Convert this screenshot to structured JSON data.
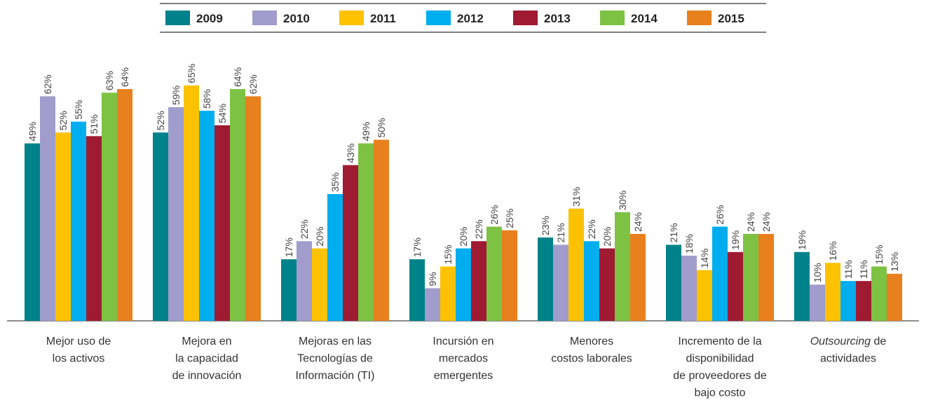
{
  "chart_data": {
    "type": "bar",
    "categories": [
      [
        "Mejor uso de",
        "los activos"
      ],
      [
        "Mejora en",
        "la capacidad",
        "de innovación"
      ],
      [
        "Mejoras en las",
        "Tecnologías de",
        "Información (TI)"
      ],
      [
        "Incursión en",
        "mercados",
        "emergentes"
      ],
      [
        "Menores",
        "costos laborales"
      ],
      [
        "Incremento de la",
        "disponibilidad",
        "de proveedores de",
        "bajo costo"
      ],
      [
        [
          {
            "text": "Outsourcing",
            "italic": true
          },
          {
            "text": " de"
          }
        ],
        "actividades"
      ]
    ],
    "series": [
      {
        "name": "2009",
        "color": "#00828a",
        "values": [
          49,
          52,
          17,
          17,
          23,
          21,
          19
        ],
        "value_labels": [
          "49%",
          "52%",
          "17%",
          "17%",
          "23%",
          "21%",
          "19%"
        ]
      },
      {
        "name": "2010",
        "color": "#a09ccc",
        "values": [
          62,
          59,
          22,
          9,
          21,
          18,
          10
        ],
        "value_labels": [
          "62%",
          "59%",
          "22%",
          "9%",
          "21%",
          "18%",
          "10%"
        ]
      },
      {
        "name": "2011",
        "color": "#fcc200",
        "values": [
          52,
          65,
          20,
          15,
          31,
          14,
          16
        ],
        "value_labels": [
          "52%",
          "65%",
          "20%",
          "15%",
          "31%",
          "14%",
          "16%"
        ]
      },
      {
        "name": "2012",
        "color": "#00adef",
        "values": [
          55,
          58,
          35,
          20,
          22,
          26,
          11
        ],
        "value_labels": [
          "55%",
          "58%",
          "35%",
          "20%",
          "22%",
          "26%",
          "11%"
        ]
      },
      {
        "name": "2013",
        "color": "#9e1b32",
        "values": [
          51,
          54,
          43,
          22,
          20,
          19,
          11
        ],
        "value_labels": [
          "51%",
          "54%",
          "43%",
          "22%",
          "20%",
          "19%",
          "11%"
        ]
      },
      {
        "name": "2014",
        "color": "#7dc242",
        "values": [
          63,
          64,
          49,
          26,
          30,
          24,
          15
        ],
        "value_labels": [
          "63%",
          "64%",
          "49%",
          "26%",
          "30%",
          "24%",
          "15%"
        ]
      },
      {
        "name": "2015",
        "color": "#e8801e",
        "values": [
          64,
          62,
          50,
          25,
          24,
          24,
          13
        ],
        "value_labels": [
          "64%",
          "62%",
          "50%",
          "25%",
          "24%",
          "24%",
          "13%"
        ]
      }
    ],
    "legend": "top"
  }
}
